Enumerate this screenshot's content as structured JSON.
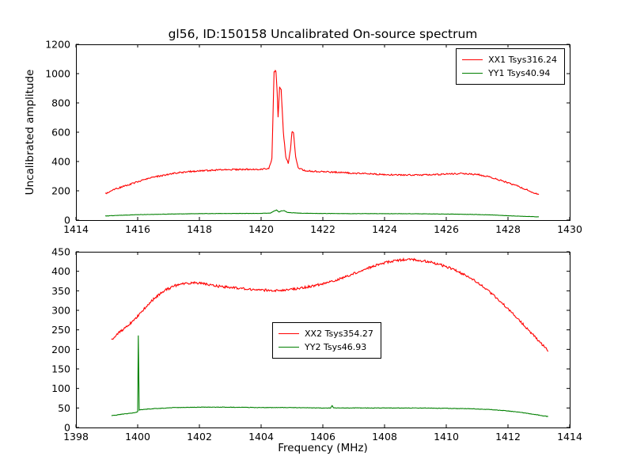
{
  "figure": {
    "background": "#ffffff",
    "axis_color": "#000000"
  },
  "chart_data": [
    {
      "type": "line",
      "title": "gl56, ID:150158 Uncalibrated On-source spectrum",
      "xlabel": "",
      "ylabel": "Uncalibrated amplitude",
      "xlim": [
        1414,
        1430
      ],
      "ylim": [
        0,
        1200
      ],
      "xticks": [
        1414,
        1416,
        1418,
        1420,
        1422,
        1424,
        1426,
        1428,
        1430
      ],
      "yticks": [
        0,
        200,
        400,
        600,
        800,
        1000,
        1200
      ],
      "grid": false,
      "legend_loc": "upper right",
      "series": [
        {
          "name": "XX1 Tsys316.24",
          "color": "#ff0000",
          "noise": 5,
          "points": [
            [
              1414.95,
              178
            ],
            [
              1415.2,
              205
            ],
            [
              1415.6,
              235
            ],
            [
              1416.0,
              262
            ],
            [
              1416.4,
              288
            ],
            [
              1416.8,
              305
            ],
            [
              1417.2,
              320
            ],
            [
              1417.6,
              330
            ],
            [
              1418.0,
              336
            ],
            [
              1418.5,
              341
            ],
            [
              1419.0,
              345
            ],
            [
              1419.5,
              346
            ],
            [
              1420.0,
              348
            ],
            [
              1420.25,
              350
            ],
            [
              1420.35,
              420
            ],
            [
              1420.42,
              1015
            ],
            [
              1420.48,
              1020
            ],
            [
              1420.52,
              870
            ],
            [
              1420.55,
              700
            ],
            [
              1420.6,
              905
            ],
            [
              1420.65,
              890
            ],
            [
              1420.72,
              600
            ],
            [
              1420.8,
              430
            ],
            [
              1420.88,
              390
            ],
            [
              1420.95,
              480
            ],
            [
              1421.0,
              605
            ],
            [
              1421.05,
              595
            ],
            [
              1421.12,
              430
            ],
            [
              1421.2,
              355
            ],
            [
              1421.4,
              338
            ],
            [
              1421.8,
              332
            ],
            [
              1422.5,
              326
            ],
            [
              1423.0,
              320
            ],
            [
              1423.5,
              315
            ],
            [
              1424.0,
              311
            ],
            [
              1424.5,
              308
            ],
            [
              1425.0,
              307
            ],
            [
              1425.5,
              309
            ],
            [
              1426.0,
              314
            ],
            [
              1426.5,
              318
            ],
            [
              1427.0,
              312
            ],
            [
              1427.3,
              300
            ],
            [
              1427.6,
              282
            ],
            [
              1428.0,
              255
            ],
            [
              1428.4,
              225
            ],
            [
              1428.7,
              200
            ],
            [
              1429.0,
              172
            ]
          ]
        },
        {
          "name": "YY1 Tsys40.94",
          "color": "#008000",
          "noise": 1,
          "points": [
            [
              1414.95,
              28
            ],
            [
              1415.5,
              33
            ],
            [
              1416,
              37
            ],
            [
              1417,
              41
            ],
            [
              1418,
              44
            ],
            [
              1419,
              45
            ],
            [
              1420,
              46
            ],
            [
              1420.3,
              48
            ],
            [
              1420.42,
              62
            ],
            [
              1420.5,
              68
            ],
            [
              1420.58,
              55
            ],
            [
              1420.65,
              62
            ],
            [
              1420.75,
              65
            ],
            [
              1420.85,
              52
            ],
            [
              1421.0,
              50
            ],
            [
              1421.3,
              47
            ],
            [
              1422,
              45
            ],
            [
              1423,
              44
            ],
            [
              1424,
              44
            ],
            [
              1425,
              43
            ],
            [
              1426,
              41
            ],
            [
              1426.8,
              39
            ],
            [
              1427.5,
              35
            ],
            [
              1428.2,
              28
            ],
            [
              1429.0,
              22
            ]
          ]
        }
      ]
    },
    {
      "type": "line",
      "title": "",
      "xlabel": "Frequency (MHz)",
      "ylabel": "",
      "xlim": [
        1398,
        1414
      ],
      "ylim": [
        0,
        450
      ],
      "xticks": [
        1398,
        1400,
        1402,
        1404,
        1406,
        1408,
        1410,
        1412,
        1414
      ],
      "yticks": [
        0,
        50,
        100,
        150,
        200,
        250,
        300,
        350,
        400,
        450
      ],
      "grid": false,
      "legend_loc": "center",
      "series": [
        {
          "name": "XX2 Tsys354.27",
          "color": "#ff0000",
          "noise": 3,
          "points": [
            [
              1399.15,
              225
            ],
            [
              1399.4,
              243
            ],
            [
              1399.7,
              262
            ],
            [
              1400.0,
              285
            ],
            [
              1400.3,
              312
            ],
            [
              1400.6,
              335
            ],
            [
              1400.9,
              352
            ],
            [
              1401.2,
              363
            ],
            [
              1401.5,
              369
            ],
            [
              1401.8,
              371
            ],
            [
              1402.1,
              369
            ],
            [
              1402.4,
              364
            ],
            [
              1402.8,
              360
            ],
            [
              1403.2,
              357
            ],
            [
              1403.6,
              354
            ],
            [
              1404.0,
              352
            ],
            [
              1404.4,
              351
            ],
            [
              1404.8,
              352
            ],
            [
              1405.2,
              356
            ],
            [
              1405.6,
              361
            ],
            [
              1406.0,
              368
            ],
            [
              1406.4,
              377
            ],
            [
              1406.8,
              388
            ],
            [
              1407.2,
              400
            ],
            [
              1407.6,
              412
            ],
            [
              1408.0,
              422
            ],
            [
              1408.4,
              428
            ],
            [
              1408.7,
              430
            ],
            [
              1409.0,
              429
            ],
            [
              1409.4,
              425
            ],
            [
              1409.8,
              417
            ],
            [
              1410.2,
              406
            ],
            [
              1410.6,
              391
            ],
            [
              1411.0,
              372
            ],
            [
              1411.4,
              348
            ],
            [
              1411.8,
              320
            ],
            [
              1412.2,
              288
            ],
            [
              1412.6,
              255
            ],
            [
              1413.0,
              222
            ],
            [
              1413.3,
              196
            ]
          ]
        },
        {
          "name": "YY2 Tsys46.93",
          "color": "#008000",
          "noise": 0.6,
          "points": [
            [
              1399.15,
              30
            ],
            [
              1399.5,
              34
            ],
            [
              1399.8,
              37
            ],
            [
              1399.95,
              39
            ],
            [
              1400.0,
              40
            ],
            [
              1400.02,
              235
            ],
            [
              1400.05,
              45
            ],
            [
              1400.3,
              47
            ],
            [
              1400.7,
              49
            ],
            [
              1401.2,
              51
            ],
            [
              1402.0,
              52
            ],
            [
              1403.0,
              52
            ],
            [
              1404.0,
              51
            ],
            [
              1405.0,
              51
            ],
            [
              1406.0,
              50
            ],
            [
              1406.25,
              50
            ],
            [
              1406.3,
              56
            ],
            [
              1406.35,
              50
            ],
            [
              1407.0,
              50
            ],
            [
              1408.0,
              50
            ],
            [
              1409.0,
              50
            ],
            [
              1410.0,
              49
            ],
            [
              1410.8,
              48
            ],
            [
              1411.4,
              46
            ],
            [
              1411.9,
              43
            ],
            [
              1412.4,
              39
            ],
            [
              1412.9,
              33
            ],
            [
              1413.3,
              28
            ]
          ]
        }
      ]
    }
  ]
}
